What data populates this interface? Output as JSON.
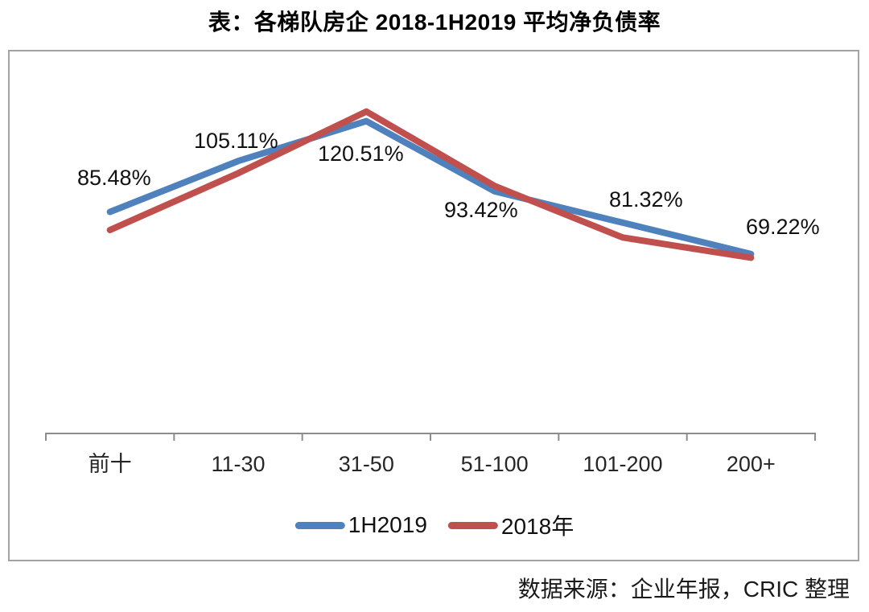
{
  "title": "表：各梯队房企 2018-1H2019 平均净负债率",
  "source_note": "数据来源：企业年报，CRIC 整理",
  "colors": {
    "series_1h2019": "#4F81BD",
    "series_2018": "#C0504D",
    "axis": "#8c8c8c",
    "frame_border": "#a3a3a3"
  },
  "chart_data": {
    "type": "line",
    "title": "表：各梯队房企 2018-1H2019 平均净负债率",
    "categories": [
      "前十",
      "11-30",
      "31-50",
      "51-100",
      "101-200",
      "200+"
    ],
    "series": [
      {
        "name": "1H2019",
        "color": "#4F81BD",
        "values": [
          85.48,
          105.11,
          120.51,
          93.42,
          81.32,
          69.22
        ],
        "point_labels": [
          "85.48%",
          "105.11%",
          "120.51%",
          "93.42%",
          "81.32%",
          "69.22%"
        ]
      },
      {
        "name": "2018年",
        "color": "#C0504D",
        "values": [
          78.5,
          100.4,
          124.2,
          95.5,
          75.6,
          67.8
        ],
        "point_labels": []
      }
    ],
    "xlabel": "",
    "ylabel": "",
    "ylim": [
      0,
      148
    ],
    "grid": false,
    "legend_position": "bottom",
    "y_axis_visible": false
  }
}
